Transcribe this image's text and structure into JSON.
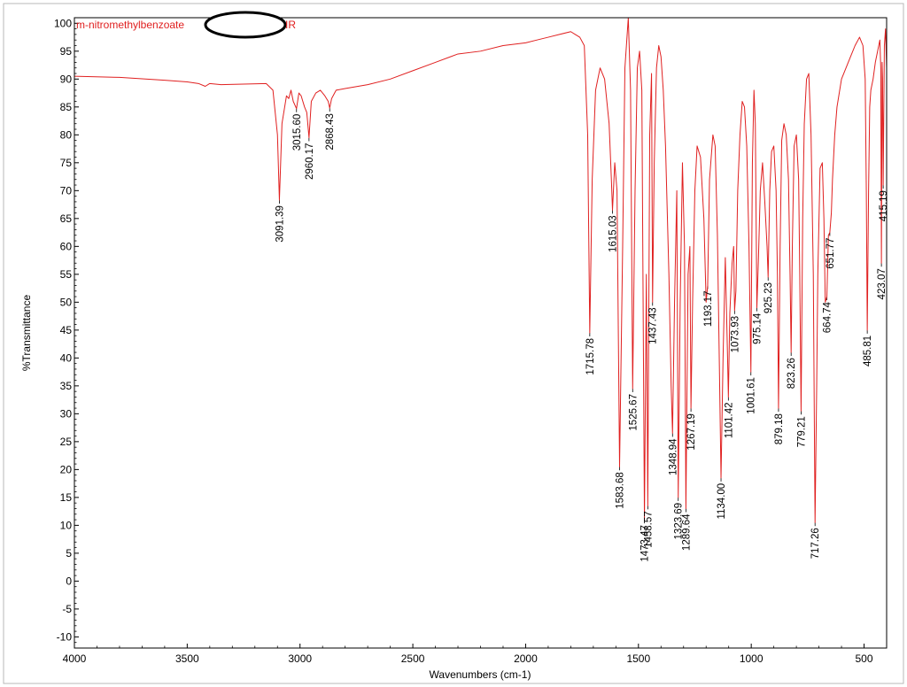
{
  "chart_data": {
    "type": "line",
    "title_left": "m-nitromethylbenzoate",
    "title_right": "IR",
    "xlabel": "Wavenumbers (cm-1)",
    "ylabel": "%Transmittance",
    "xlim": [
      4000,
      400
    ],
    "ylim": [
      -12,
      101
    ],
    "x_ticks": [
      4000,
      3500,
      3000,
      2500,
      2000,
      1500,
      1000,
      500
    ],
    "y_ticks": [
      -10,
      -5,
      0,
      5,
      10,
      15,
      20,
      25,
      30,
      35,
      40,
      45,
      50,
      55,
      60,
      65,
      70,
      75,
      80,
      85,
      90,
      95,
      100
    ],
    "series_color": "#e02020",
    "spectrum": {
      "x": [
        4000,
        3800,
        3600,
        3500,
        3450,
        3420,
        3400,
        3350,
        3250,
        3150,
        3120,
        3100,
        3091.39,
        3080,
        3060,
        3050,
        3040,
        3030,
        3015.6,
        3005,
        2995,
        2980,
        2970,
        2960.17,
        2950,
        2930,
        2910,
        2890,
        2875,
        2868.43,
        2860,
        2840,
        2800,
        2700,
        2600,
        2500,
        2400,
        2300,
        2200,
        2100,
        2000,
        1950,
        1900,
        1850,
        1800,
        1780,
        1760,
        1740,
        1725,
        1715.78,
        1705,
        1690,
        1670,
        1650,
        1630,
        1620,
        1615.03,
        1605,
        1595,
        1583.68,
        1570,
        1560,
        1545,
        1535,
        1525.67,
        1515,
        1505,
        1495,
        1485,
        1473.47,
        1465,
        1458.57,
        1450,
        1442,
        1437.43,
        1430,
        1420,
        1410,
        1400,
        1390,
        1380,
        1365,
        1355,
        1348.94,
        1340,
        1330,
        1323.69,
        1315,
        1305,
        1296,
        1289.64,
        1280,
        1272,
        1267.19,
        1260,
        1250,
        1240,
        1225,
        1210,
        1200,
        1193.17,
        1185,
        1170,
        1160,
        1150,
        1140,
        1134,
        1125,
        1115,
        1105,
        1101.42,
        1095,
        1085,
        1078,
        1073.93,
        1068,
        1060,
        1050,
        1040,
        1030,
        1020,
        1010,
        1001.61,
        995,
        988,
        982,
        975.14,
        968,
        960,
        950,
        940,
        930,
        925.23,
        918,
        910,
        900,
        890,
        884,
        879.18,
        872,
        865,
        855,
        845,
        835,
        828,
        823.26,
        818,
        810,
        800,
        790,
        785,
        779.21,
        772,
        765,
        755,
        745,
        735,
        725,
        717.26,
        710,
        705,
        695,
        685,
        678,
        672,
        664.74,
        658,
        651.77,
        645,
        640,
        630,
        620,
        600,
        580,
        560,
        540,
        520,
        505,
        495,
        490,
        485.81,
        480,
        475,
        470,
        460,
        450,
        440,
        430,
        426,
        423.07,
        420,
        418,
        415.19,
        410,
        405,
        400
      ],
      "y": [
        90.5,
        90.3,
        89.8,
        89.5,
        89.2,
        88.7,
        89.2,
        89.0,
        89.1,
        89.2,
        88.0,
        80.0,
        68.3,
        82.0,
        87.0,
        86.5,
        88.0,
        86.0,
        84.7,
        87.5,
        87.0,
        85.0,
        84.0,
        79.5,
        86.0,
        87.5,
        88.0,
        87.0,
        86.0,
        84.8,
        86.5,
        88.0,
        88.3,
        89.0,
        90.0,
        91.5,
        93.0,
        94.5,
        95.0,
        96.0,
        96.5,
        97.0,
        97.5,
        98.0,
        98.5,
        98.0,
        97.5,
        96.0,
        80.0,
        44.5,
        72.0,
        88.0,
        92.0,
        90.0,
        82.0,
        72.0,
        66.5,
        75.0,
        70.0,
        20.5,
        60.0,
        92.0,
        101.0,
        88.0,
        34.5,
        70.0,
        92.0,
        95.0,
        88.0,
        11.0,
        55.0,
        13.5,
        80.0,
        91.0,
        50.0,
        75.0,
        92.0,
        96.0,
        94.0,
        88.0,
        78.0,
        55.0,
        35.0,
        26.5,
        50.0,
        70.0,
        15.0,
        50.0,
        75.0,
        60.0,
        13.0,
        55.0,
        60.0,
        31.0,
        50.0,
        70.0,
        78.0,
        76.0,
        65.0,
        50.0,
        53.0,
        72.0,
        80.0,
        78.0,
        62.0,
        35.0,
        18.5,
        40.0,
        58.0,
        40.0,
        33.0,
        48.0,
        57.0,
        60.0,
        48.5,
        52.0,
        70.0,
        80.0,
        86.0,
        85.0,
        78.0,
        60.0,
        37.5,
        75.0,
        88.0,
        82.0,
        49.0,
        58.0,
        70.0,
        75.0,
        68.0,
        60.0,
        54.5,
        70.0,
        77.0,
        78.0,
        70.0,
        55.0,
        31.0,
        60.0,
        79.0,
        82.0,
        80.0,
        72.0,
        55.0,
        41.0,
        60.0,
        78.0,
        80.0,
        72.0,
        55.0,
        30.5,
        65.0,
        82.0,
        90.0,
        91.0,
        80.0,
        55.0,
        10.5,
        35.0,
        55.0,
        74.0,
        75.0,
        65.0,
        50.0,
        51.0,
        62.0,
        62.5,
        66.0,
        72.0,
        80.0,
        85.0,
        90.0,
        92.0,
        94.0,
        96.0,
        97.5,
        96.0,
        90.0,
        70.0,
        45.0,
        70.0,
        85.0,
        88.0,
        90.0,
        93.0,
        95.0,
        97.0,
        92.0,
        57.0,
        93.0,
        90.0,
        71.0,
        96.0,
        99.0,
        92.0
      ]
    },
    "peak_labels": [
      {
        "x": 3091.39,
        "label": "3091.39"
      },
      {
        "x": 3015.6,
        "label": "3015.60"
      },
      {
        "x": 2960.17,
        "label": "2960.17"
      },
      {
        "x": 2868.43,
        "label": "2868.43"
      },
      {
        "x": 1715.78,
        "label": "1715.78"
      },
      {
        "x": 1615.03,
        "label": "1615.03"
      },
      {
        "x": 1583.68,
        "label": "1583.68"
      },
      {
        "x": 1525.67,
        "label": "1525.67"
      },
      {
        "x": 1473.47,
        "label": "1473.47"
      },
      {
        "x": 1458.57,
        "label": "1458.57"
      },
      {
        "x": 1437.43,
        "label": "1437.43"
      },
      {
        "x": 1348.94,
        "label": "1348.94"
      },
      {
        "x": 1323.69,
        "label": "1323.69"
      },
      {
        "x": 1289.64,
        "label": "1289.64"
      },
      {
        "x": 1267.19,
        "label": "1267.19"
      },
      {
        "x": 1193.17,
        "label": "1193.17"
      },
      {
        "x": 1134.0,
        "label": "1134.00"
      },
      {
        "x": 1101.42,
        "label": "1101.42"
      },
      {
        "x": 1073.93,
        "label": "1073.93"
      },
      {
        "x": 1001.61,
        "label": "1001.61"
      },
      {
        "x": 975.14,
        "label": "975.14"
      },
      {
        "x": 925.23,
        "label": "925.23"
      },
      {
        "x": 879.18,
        "label": "879.18"
      },
      {
        "x": 823.26,
        "label": "823.26"
      },
      {
        "x": 779.21,
        "label": "779.21"
      },
      {
        "x": 717.26,
        "label": "717.26"
      },
      {
        "x": 664.74,
        "label": "664.74"
      },
      {
        "x": 651.77,
        "label": "651.77"
      },
      {
        "x": 485.81,
        "label": "485.81"
      },
      {
        "x": 423.07,
        "label": "423.07"
      },
      {
        "x": 415.19,
        "label": "415.19"
      }
    ]
  }
}
